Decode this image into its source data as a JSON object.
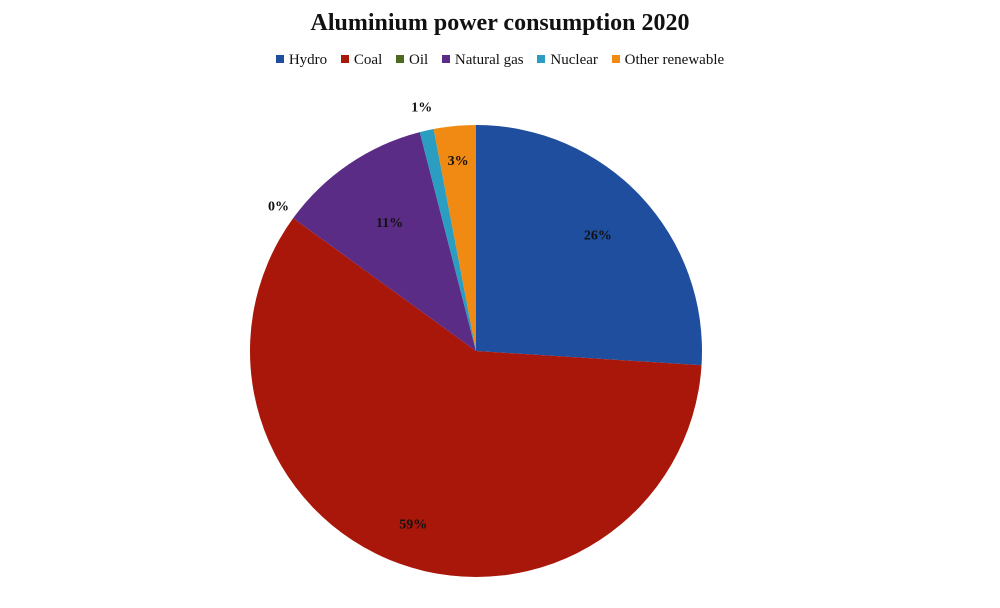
{
  "chart_data": {
    "type": "pie",
    "title": "Aluminium power consumption 2020",
    "legend_position": "top",
    "slices": [
      {
        "name": "Hydro",
        "value": 26,
        "label": "26%",
        "color": "#1f4e9e"
      },
      {
        "name": "Coal",
        "value": 59,
        "label": "59%",
        "color": "#a8170a"
      },
      {
        "name": "Oil",
        "value": 0,
        "label": "0%",
        "color": "#4a6a1e"
      },
      {
        "name": "Natural gas",
        "value": 11,
        "label": "11%",
        "color": "#5b2c86"
      },
      {
        "name": "Nuclear",
        "value": 1,
        "label": "1%",
        "color": "#2a9dc0"
      },
      {
        "name": "Other renewable",
        "value": 3,
        "label": "3%",
        "color": "#f08a12"
      }
    ]
  }
}
